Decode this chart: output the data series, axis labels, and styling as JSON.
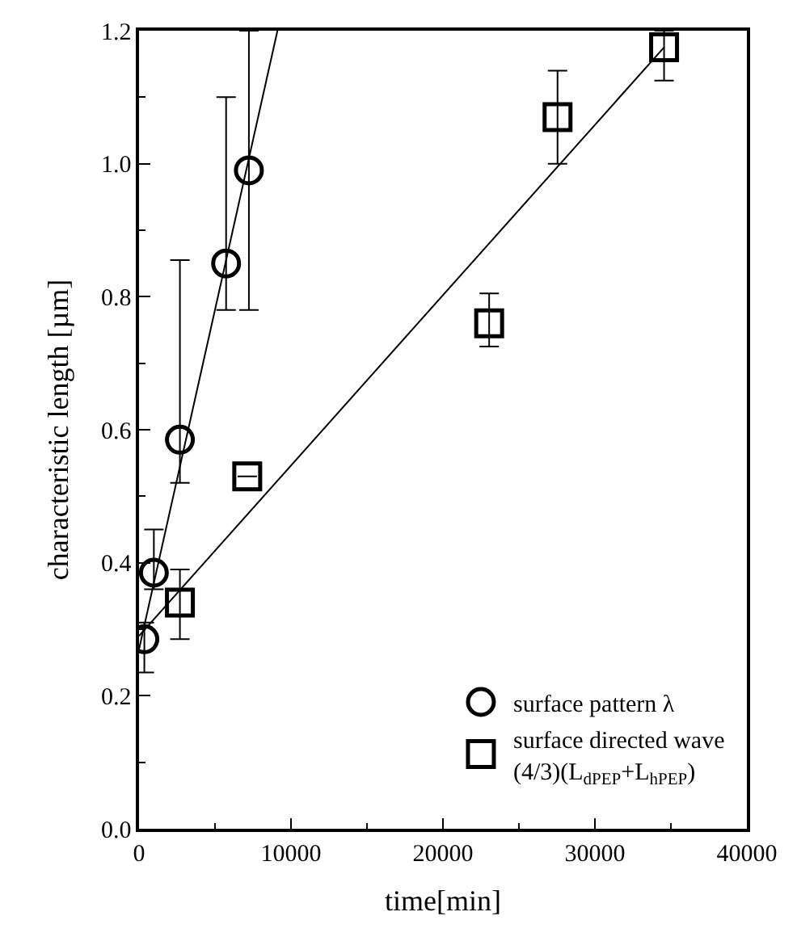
{
  "chart_data": {
    "type": "scatter",
    "xlabel": "time[min]",
    "ylabel": "characteristic length [µm]",
    "xlim": [
      0,
      40000
    ],
    "xticks": [
      0,
      10000,
      20000,
      30000,
      40000
    ],
    "ylim": [
      0,
      1.2
    ],
    "yticks": [
      {
        "value": 0,
        "label": "0.0"
      },
      {
        "value": 0.2,
        "label": "0.2"
      },
      {
        "value": 0.4,
        "label": "0.4"
      },
      {
        "value": 0.6,
        "label": "0.6"
      },
      {
        "value": 0.8,
        "label": "0.8"
      },
      {
        "value": 1.0,
        "label": "1.0"
      },
      {
        "value": 1.2,
        "label": "1.2"
      }
    ],
    "legend": "bottom right",
    "series": [
      {
        "name": "surface pattern λ",
        "marker": "circle",
        "color": "#000000",
        "x": [
          350,
          975,
          2690,
          5730,
          7230
        ],
        "values": [
          0.285,
          0.385,
          0.585,
          0.85,
          0.99
        ],
        "errors": [
          [
            0.235,
            0.31
          ],
          [
            0.36,
            0.45
          ],
          [
            0.52,
            0.855
          ],
          [
            0.78,
            1.1
          ],
          [
            0.78,
            1.2
          ]
        ]
      },
      {
        "name": "surface directed wave\n(4/3)(L$_{dPEP}$+L$_{hPEP}$)",
        "marker": "square",
        "color": "#000000",
        "x": [
          2690,
          7120,
          23040,
          27540,
          34550
        ],
        "values": [
          0.34,
          0.53,
          0.76,
          1.07,
          1.175
        ],
        "errors": [
          [
            0.285,
            0.39
          ],
          null,
          [
            0.725,
            0.805
          ],
          [
            1.0,
            1.14
          ],
          [
            1.125,
            1.2
          ]
        ]
      },
      {
        "type": "line",
        "color": "#000000",
        "x": [
          0,
          9110
        ],
        "values": [
          0.27,
          1.2
        ]
      },
      {
        "type": "line",
        "color": "#000000",
        "x": [
          0,
          34550
        ],
        "values": [
          0.29,
          1.175
        ]
      }
    ]
  }
}
